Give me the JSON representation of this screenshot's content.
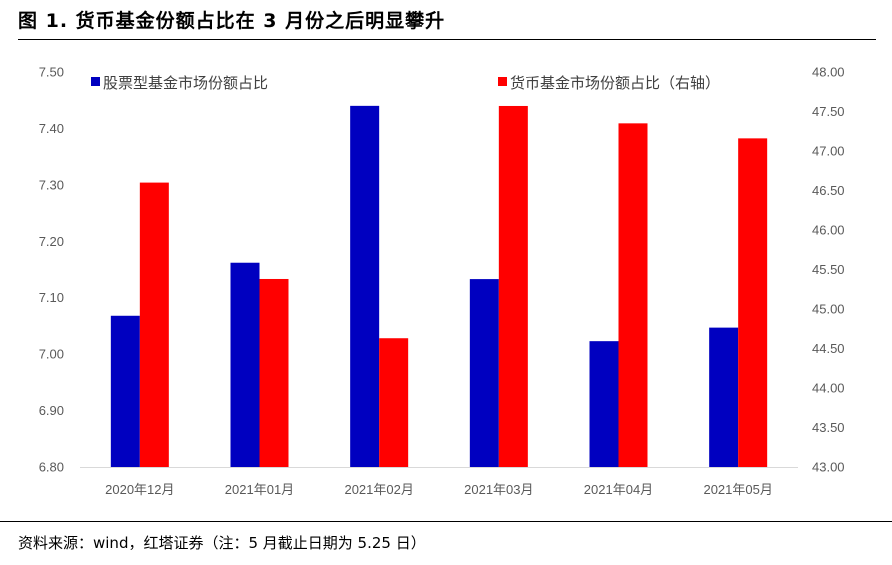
{
  "figure": {
    "title": "图 1. 货币基金份额占比在 3 月份之后明显攀升",
    "source": "资料来源：wind，红塔证券（注：5 月截止日期为 5.25 日）"
  },
  "colors": {
    "series1": "#0000c0",
    "series2": "#ff0000"
  },
  "chart_data": {
    "type": "bar",
    "categories": [
      "2020年12月",
      "2021年01月",
      "2021年02月",
      "2021年03月",
      "2021年04月",
      "2021年05月"
    ],
    "series": [
      {
        "name": "股票型基金市场份额占比",
        "axis": "left",
        "values": [
          7.068,
          7.162,
          7.44,
          7.133,
          7.023,
          7.047
        ]
      },
      {
        "name": "货币基金市场份额占比（右轴）",
        "axis": "right",
        "values": [
          46.6,
          45.38,
          44.63,
          47.57,
          47.35,
          47.16
        ]
      }
    ],
    "y_left": {
      "ylim": [
        6.8,
        7.5
      ],
      "ticks": [
        "6.80",
        "6.90",
        "7.00",
        "7.10",
        "7.20",
        "7.30",
        "7.40",
        "7.50"
      ]
    },
    "y_right": {
      "ylim": [
        43.0,
        48.0
      ],
      "ticks": [
        "43.00",
        "43.50",
        "44.00",
        "44.50",
        "45.00",
        "45.50",
        "46.00",
        "46.50",
        "47.00",
        "47.50",
        "48.00"
      ]
    },
    "grid": false,
    "legend": "top"
  }
}
